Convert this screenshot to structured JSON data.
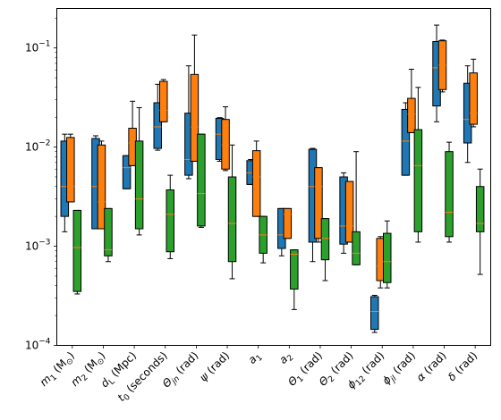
{
  "chart_data": {
    "type": "boxplot",
    "yscale": "log",
    "ylim": [
      0.0001,
      0.25
    ],
    "yticks": [
      {
        "value": 0.0001,
        "base": "10",
        "exp": "−4"
      },
      {
        "value": 0.001,
        "base": "10",
        "exp": "−3"
      },
      {
        "value": 0.01,
        "base": "10",
        "exp": "−2"
      },
      {
        "value": 0.1,
        "base": "10",
        "exp": "−1"
      }
    ],
    "categories": [
      {
        "parts": [
          {
            "t": "m",
            "i": true
          },
          {
            "t": "1",
            "sub": true
          },
          {
            "t": " (M"
          },
          {
            "t": "⊙",
            "sub": true
          },
          {
            "t": ")"
          }
        ]
      },
      {
        "parts": [
          {
            "t": "m",
            "i": true
          },
          {
            "t": "2",
            "sub": true
          },
          {
            "t": " (M"
          },
          {
            "t": "⊙",
            "sub": true
          },
          {
            "t": ")"
          }
        ]
      },
      {
        "parts": [
          {
            "t": "d",
            "i": true
          },
          {
            "t": "L",
            "sub": true
          },
          {
            "t": " (Mpc)"
          }
        ]
      },
      {
        "parts": [
          {
            "t": "t",
            "i": true
          },
          {
            "t": "0",
            "sub": true
          },
          {
            "t": " (seconds)"
          }
        ]
      },
      {
        "parts": [
          {
            "t": "Θ",
            "i": true
          },
          {
            "t": "jn",
            "sub": true,
            "i": true
          },
          {
            "t": " (rad)"
          }
        ]
      },
      {
        "parts": [
          {
            "t": "ψ",
            "i": true
          },
          {
            "t": " (rad)"
          }
        ]
      },
      {
        "parts": [
          {
            "t": "a",
            "i": true
          },
          {
            "t": "1",
            "sub": true
          }
        ]
      },
      {
        "parts": [
          {
            "t": "a",
            "i": true
          },
          {
            "t": "2",
            "sub": true
          }
        ]
      },
      {
        "parts": [
          {
            "t": "Θ",
            "i": true
          },
          {
            "t": "1",
            "sub": true
          },
          {
            "t": " (rad)"
          }
        ]
      },
      {
        "parts": [
          {
            "t": "Θ",
            "i": true
          },
          {
            "t": "2",
            "sub": true
          },
          {
            "t": " (rad)"
          }
        ]
      },
      {
        "parts": [
          {
            "t": "ϕ",
            "i": true
          },
          {
            "t": "12",
            "sub": true
          },
          {
            "t": " (rad)"
          }
        ]
      },
      {
        "parts": [
          {
            "t": "ϕ",
            "i": true
          },
          {
            "t": "jl",
            "sub": true,
            "i": true
          },
          {
            "t": " (rad)"
          }
        ]
      },
      {
        "parts": [
          {
            "t": "α",
            "i": true
          },
          {
            "t": " (rad)"
          }
        ]
      },
      {
        "parts": [
          {
            "t": "δ",
            "i": true
          },
          {
            "t": " (rad)"
          }
        ]
      }
    ],
    "series": [
      {
        "color": "#1f77b4",
        "boxes": [
          {
            "whislo": 0.0014,
            "q1": 0.002,
            "med": 0.004,
            "q3": 0.0115,
            "whishi": 0.0135
          },
          {
            "whislo": 0.0015,
            "q1": 0.0015,
            "med": 0.004,
            "q3": 0.0122,
            "whishi": 0.013
          },
          {
            "whislo": 0.0038,
            "q1": 0.0038,
            "med": 0.0062,
            "q3": 0.0082,
            "whishi": 0.0082
          },
          {
            "whislo": 0.0093,
            "q1": 0.0097,
            "med": 0.016,
            "q3": 0.028,
            "whishi": 0.043
          },
          {
            "whislo": 0.0048,
            "q1": 0.0052,
            "med": 0.0075,
            "q3": 0.022,
            "whishi": 0.066
          },
          {
            "whislo": 0.0072,
            "q1": 0.0075,
            "med": 0.0135,
            "q3": 0.0195,
            "whishi": 0.0198
          },
          {
            "whislo": 0.0042,
            "q1": 0.0042,
            "med": 0.0055,
            "q3": 0.0073,
            "whishi": 0.0075
          },
          {
            "whislo": 0.0008,
            "q1": 0.00095,
            "med": 0.0013,
            "q3": 0.0024,
            "whishi": 0.0024
          },
          {
            "whislo": 0.0007,
            "q1": 0.0011,
            "med": 0.004,
            "q3": 0.0095,
            "whishi": 0.0097
          },
          {
            "whislo": 0.00085,
            "q1": 0.00105,
            "med": 0.0016,
            "q3": 0.005,
            "whishi": 0.0055
          },
          {
            "whislo": 0.000135,
            "q1": 0.000145,
            "med": 0.00022,
            "q3": 0.00031,
            "whishi": 0.00032
          },
          {
            "whislo": 0.0052,
            "q1": 0.0052,
            "med": 0.0115,
            "q3": 0.024,
            "whishi": 0.028
          },
          {
            "whislo": 0.018,
            "q1": 0.026,
            "med": 0.063,
            "q3": 0.116,
            "whishi": 0.17
          },
          {
            "whislo": 0.007,
            "q1": 0.011,
            "med": 0.019,
            "q3": 0.044,
            "whishi": 0.066
          }
        ]
      },
      {
        "color": "#ff7f0e",
        "boxes": [
          {
            "whislo": 0.0028,
            "q1": 0.0028,
            "med": 0.004,
            "q3": 0.0125,
            "whishi": 0.0135
          },
          {
            "whislo": 0.0015,
            "q1": 0.0015,
            "med": 0.0028,
            "q3": 0.0105,
            "whishi": 0.0115
          },
          {
            "whislo": 0.0065,
            "q1": 0.0065,
            "med": 0.011,
            "q3": 0.0155,
            "whishi": 0.029
          },
          {
            "whislo": 0.018,
            "q1": 0.018,
            "med": 0.0235,
            "q3": 0.046,
            "whishi": 0.048
          },
          {
            "whislo": 0.0072,
            "q1": 0.0072,
            "med": 0.016,
            "q3": 0.054,
            "whishi": 0.135
          },
          {
            "whislo": 0.0058,
            "q1": 0.006,
            "med": 0.0105,
            "q3": 0.019,
            "whishi": 0.0255
          },
          {
            "whislo": 0.002,
            "q1": 0.002,
            "med": 0.005,
            "q3": 0.0092,
            "whishi": 0.0115
          },
          {
            "whislo": 0.0012,
            "q1": 0.0012,
            "med": 0.0021,
            "q3": 0.0024,
            "whishi": 0.0024
          },
          {
            "whislo": 0.0011,
            "q1": 0.0012,
            "med": 0.004,
            "q3": 0.0062,
            "whishi": 0.0062
          },
          {
            "whislo": 0.0011,
            "q1": 0.0011,
            "med": 0.0016,
            "q3": 0.0045,
            "whishi": 0.0045
          },
          {
            "whislo": 0.00038,
            "q1": 0.00045,
            "med": 0.00063,
            "q3": 0.0012,
            "whishi": 0.00125
          },
          {
            "whislo": 0.014,
            "q1": 0.014,
            "med": 0.0215,
            "q3": 0.031,
            "whishi": 0.061
          },
          {
            "whislo": 0.036,
            "q1": 0.038,
            "med": 0.067,
            "q3": 0.118,
            "whishi": 0.12
          },
          {
            "whislo": 0.016,
            "q1": 0.017,
            "med": 0.022,
            "q3": 0.056,
            "whishi": 0.077
          }
        ]
      },
      {
        "color": "#2ca02c",
        "boxes": [
          {
            "whislo": 0.00033,
            "q1": 0.00035,
            "med": 0.00097,
            "q3": 0.0023,
            "whishi": 0.0023
          },
          {
            "whislo": 0.0007,
            "q1": 0.0008,
            "med": 0.00092,
            "q3": 0.0024,
            "whishi": 0.0024
          },
          {
            "whislo": 0.0013,
            "q1": 0.0015,
            "med": 0.003,
            "q3": 0.0115,
            "whishi": 0.025
          },
          {
            "whislo": 0.00075,
            "q1": 0.00088,
            "med": 0.0021,
            "q3": 0.0037,
            "whishi": 0.0052
          },
          {
            "whislo": 0.00155,
            "q1": 0.0016,
            "med": 0.0034,
            "q3": 0.0135,
            "whishi": 0.0135
          },
          {
            "whislo": 0.00047,
            "q1": 0.0007,
            "med": 0.0017,
            "q3": 0.005,
            "whishi": 0.0105
          },
          {
            "whislo": 0.00068,
            "q1": 0.00085,
            "med": 0.0013,
            "q3": 0.002,
            "whishi": 0.002
          },
          {
            "whislo": 0.00023,
            "q1": 0.00037,
            "med": 0.00083,
            "q3": 0.00092,
            "whishi": 0.00092
          },
          {
            "whislo": 0.00045,
            "q1": 0.00073,
            "med": 0.0012,
            "q3": 0.0019,
            "whishi": 0.0019
          },
          {
            "whislo": 0.00065,
            "q1": 0.00065,
            "med": 0.00085,
            "q3": 0.0014,
            "whishi": 0.009
          },
          {
            "whislo": 0.00038,
            "q1": 0.00043,
            "med": 0.0007,
            "q3": 0.00135,
            "whishi": 0.0018
          },
          {
            "whislo": 0.0011,
            "q1": 0.0014,
            "med": 0.0065,
            "q3": 0.015,
            "whishi": 0.04
          },
          {
            "whislo": 0.0011,
            "q1": 0.00125,
            "med": 0.0022,
            "q3": 0.009,
            "whishi": 0.0112
          },
          {
            "whislo": 0.00052,
            "q1": 0.0014,
            "med": 0.0017,
            "q3": 0.004,
            "whishi": 0.006
          }
        ]
      }
    ],
    "median_color": "#ff7f0e",
    "grid": false,
    "legend": "none",
    "title": "",
    "xlabel": "",
    "ylabel": ""
  }
}
